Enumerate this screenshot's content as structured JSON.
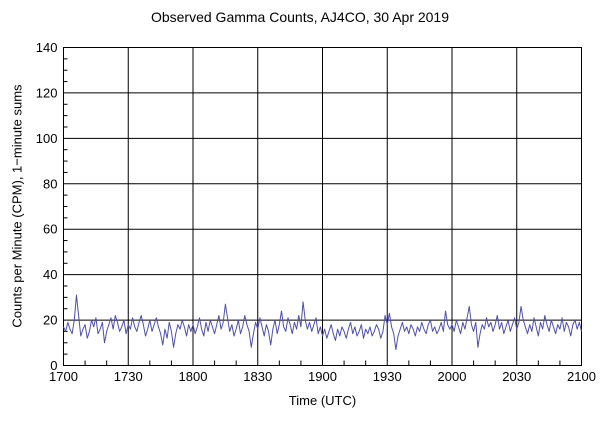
{
  "title": "Observed Gamma Counts, AJ4CO, 30 Apr 2019",
  "chart_data": {
    "type": "line",
    "title": "Observed Gamma Counts, AJ4CO, 30 Apr 2019",
    "xlabel": "Time (UTC)",
    "ylabel": "Counts per Minute (CPM), 1−minute sums",
    "ylim": [
      0,
      140
    ],
    "y_ticks": [
      0,
      20,
      40,
      60,
      80,
      100,
      120,
      140
    ],
    "y_minor_step": 5,
    "x_tick_labels": [
      "1700",
      "1730",
      "1800",
      "1830",
      "1900",
      "1930",
      "2000",
      "2030",
      "2100"
    ],
    "x_major_step_minutes": 30,
    "x_minor_step_minutes": 10,
    "x_range_minutes": 240,
    "grid": true,
    "legend": "none",
    "line_color": "#4f4fa8",
    "axis_color": "#000000",
    "series": [
      {
        "name": "gamma-counts-cpm",
        "start_time_utc": "1700",
        "interval_minutes": 1,
        "values": [
          17,
          15,
          19,
          16,
          14,
          20,
          31,
          22,
          13,
          16,
          18,
          12,
          15,
          20,
          17,
          21,
          14,
          16,
          19,
          10,
          15,
          18,
          21,
          16,
          22,
          19,
          15,
          17,
          20,
          14,
          18,
          16,
          21,
          17,
          15,
          19,
          22,
          18,
          13,
          16,
          20,
          15,
          18,
          21,
          17,
          14,
          9,
          16,
          12,
          19,
          15,
          8,
          14,
          18,
          16,
          20,
          17,
          13,
          18,
          15,
          18,
          14,
          17,
          21,
          16,
          13,
          19,
          15,
          20,
          17,
          14,
          18,
          22,
          16,
          19,
          27,
          21,
          15,
          18,
          13,
          16,
          20,
          14,
          17,
          22,
          18,
          15,
          8,
          14,
          19,
          16,
          21,
          17,
          13,
          18,
          15,
          9,
          16,
          20,
          14,
          18,
          24,
          17,
          15,
          21,
          18,
          14,
          19,
          16,
          22,
          17,
          28,
          20,
          16,
          19,
          15,
          18,
          21,
          14,
          17,
          13,
          16,
          12,
          15,
          18,
          14,
          11,
          16,
          13,
          17,
          15,
          12,
          16,
          19,
          14,
          17,
          13,
          15,
          18,
          12,
          16,
          14,
          17,
          13,
          15,
          18,
          16,
          12,
          15,
          22,
          18,
          23,
          17,
          14,
          7,
          13,
          16,
          19,
          15,
          17,
          14,
          18,
          16,
          13,
          17,
          15,
          19,
          16,
          14,
          18,
          20,
          15,
          17,
          14,
          16,
          19,
          15,
          24,
          18,
          16,
          18,
          15,
          20,
          17,
          14,
          19,
          16,
          21,
          26,
          18,
          15,
          19,
          8,
          14,
          18,
          16,
          21,
          17,
          19,
          15,
          18,
          22,
          16,
          19,
          14,
          17,
          20,
          15,
          18,
          21,
          16,
          19,
          26,
          20,
          17,
          14,
          18,
          15,
          21,
          17,
          13,
          19,
          16,
          22,
          18,
          15,
          20,
          17,
          14,
          18,
          16,
          21,
          15,
          19,
          17,
          13,
          18,
          20,
          16,
          19,
          15
        ]
      }
    ]
  }
}
